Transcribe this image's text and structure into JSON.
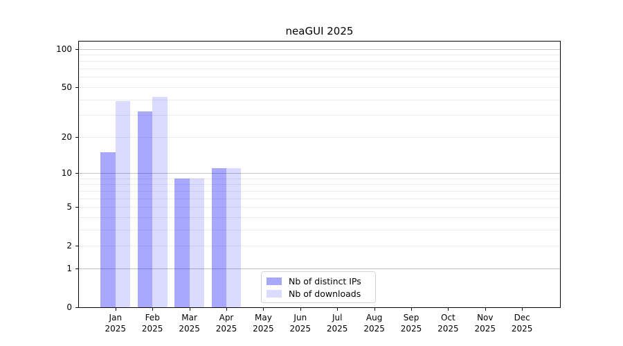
{
  "chart_data": {
    "type": "bar",
    "title": "neaGUI 2025",
    "categories": [
      "Jan",
      "Feb",
      "Mar",
      "Apr",
      "May",
      "Jun",
      "Jul",
      "Aug",
      "Sep",
      "Oct",
      "Nov",
      "Dec"
    ],
    "category_year": "2025",
    "series": [
      {
        "name": "Nb of distinct IPs",
        "color": "rgba(0,0,255,0.34)",
        "values": [
          15,
          32,
          9,
          11,
          0,
          0,
          0,
          0,
          0,
          0,
          0,
          0
        ]
      },
      {
        "name": "Nb of downloads",
        "color": "rgba(0,0,255,0.14)",
        "values": [
          39,
          42,
          9,
          11,
          0,
          0,
          0,
          0,
          0,
          0,
          0,
          0
        ]
      }
    ],
    "xlabel": "",
    "ylabel": "",
    "y_scale": "log1p",
    "y_ticks": [
      0,
      1,
      2,
      5,
      10,
      20,
      50,
      100
    ],
    "ylim": [
      0,
      114
    ],
    "grid": true,
    "minor_gridlines": [
      2,
      3,
      4,
      5,
      6,
      7,
      8,
      9,
      20,
      30,
      40,
      50,
      60,
      70,
      80,
      90
    ],
    "major_gridlines": [
      1,
      10,
      100
    ],
    "legend_position": "lower center",
    "colors": {
      "minor_grid": "#ececec",
      "major_grid": "#c2c2c2",
      "axis": "#000000",
      "background": "#ffffff"
    }
  }
}
